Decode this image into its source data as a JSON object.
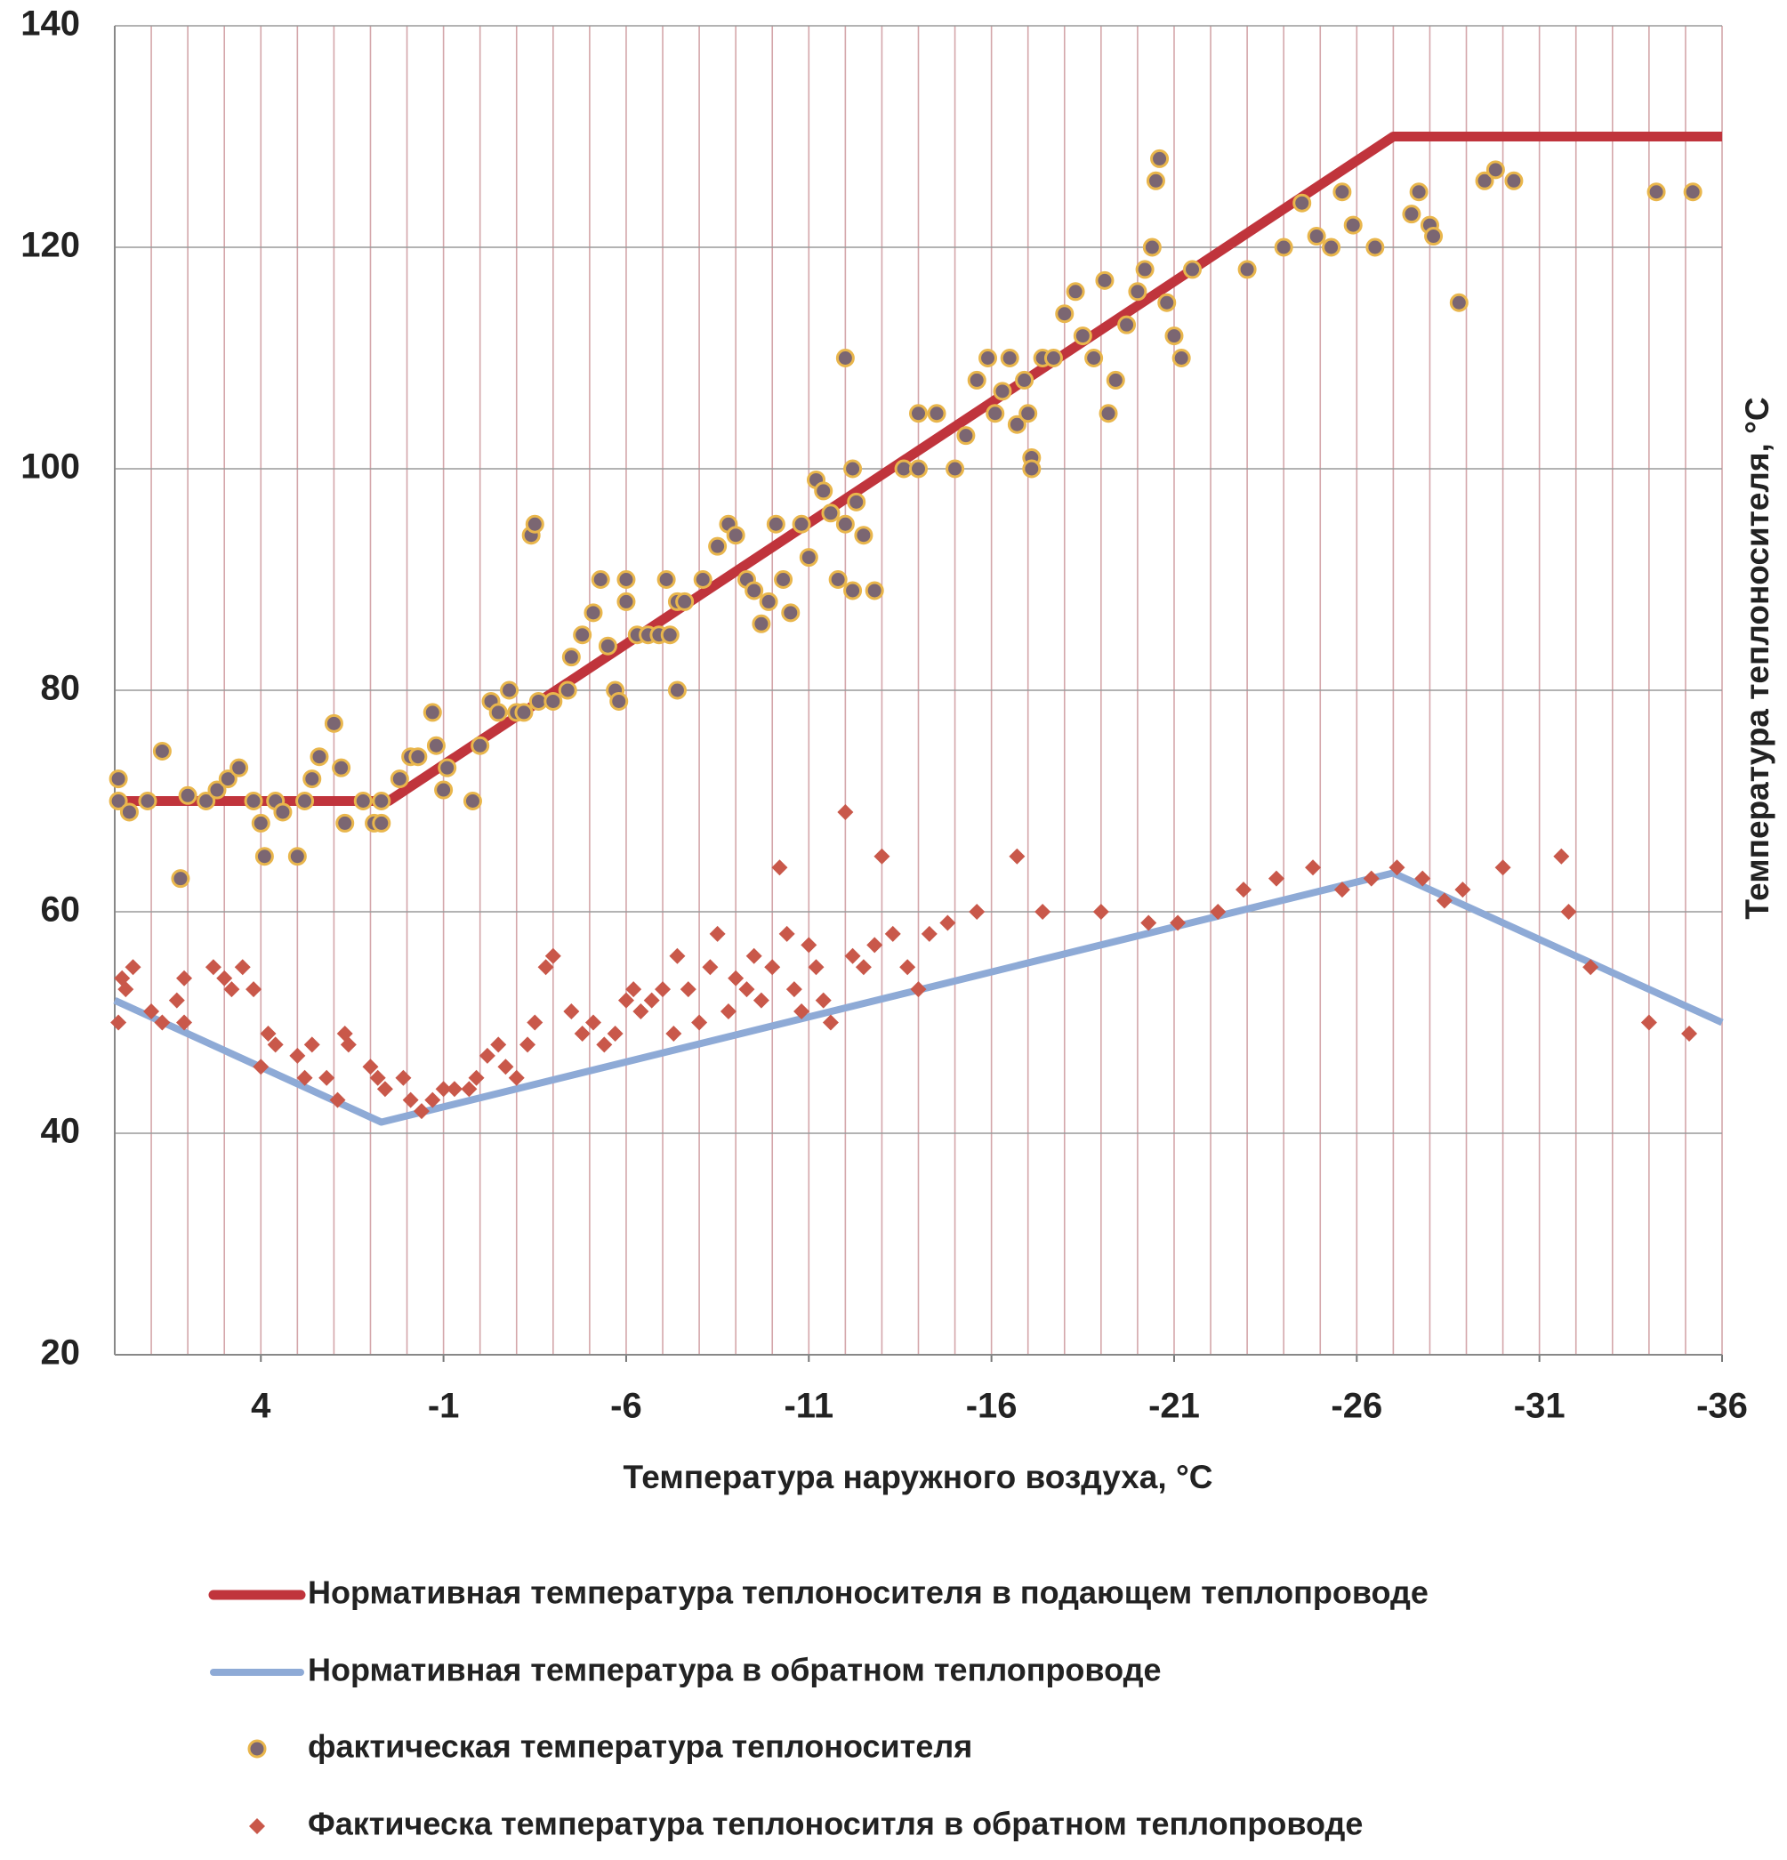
{
  "chart_data": {
    "type": "scatter",
    "x_label": "Температура наружного воздуха, °C",
    "y_label": "Температура теплоносителя, °C",
    "xlim": [
      8,
      -36
    ],
    "ylim": [
      20,
      140
    ],
    "xticks": [
      4,
      -1,
      -6,
      -11,
      -16,
      -21,
      -26,
      -31,
      -36
    ],
    "yticks": [
      20,
      40,
      60,
      80,
      100,
      120,
      140
    ],
    "x_grid_step": 1,
    "grid": true,
    "series": [
      {
        "name": "Нормативная температура теплоносителя в подающем теплопроводе",
        "style": "line",
        "color": "#c0343c",
        "x": [
          8,
          0.5,
          -27,
          -36
        ],
        "values": [
          70,
          70,
          130,
          130
        ]
      },
      {
        "name": "Нормативная температура в обратном теплопроводе",
        "style": "line",
        "color": "#8eaad6",
        "x": [
          8,
          0.7,
          -27,
          -36
        ],
        "values": [
          52,
          41,
          63.5,
          50
        ]
      },
      {
        "name": "фактическая температура теплоносителя",
        "style": "circle",
        "color": "#7b6672",
        "x": [
          7.9,
          7.9,
          7.6,
          7.1,
          6.7,
          6.2,
          6.0,
          5.5,
          5.2,
          4.9,
          4.6,
          4.2,
          4.0,
          3.9,
          3.6,
          3.4,
          3.0,
          2.8,
          2.6,
          2.4,
          2.0,
          1.8,
          1.7,
          1.2,
          0.9,
          0.7,
          0.7,
          0.2,
          -0.1,
          -0.3,
          -0.7,
          -0.8,
          -1.0,
          -1.1,
          -1.8,
          -2.0,
          -2.3,
          -2.5,
          -2.8,
          -3.0,
          -3.2,
          -3.4,
          -3.5,
          -3.6,
          -4.0,
          -4.4,
          -4.5,
          -4.8,
          -5.1,
          -5.3,
          -5.5,
          -5.7,
          -5.8,
          -6.0,
          -6.0,
          -6.3,
          -6.6,
          -6.9,
          -7.1,
          -7.2,
          -7.4,
          -7.4,
          -7.6,
          -8.1,
          -8.5,
          -8.8,
          -9.0,
          -9.3,
          -9.5,
          -9.7,
          -9.9,
          -10.1,
          -10.3,
          -10.5,
          -10.8,
          -11.0,
          -11.2,
          -11.4,
          -11.6,
          -11.8,
          -12.0,
          -12.2,
          -12.3,
          -12.0,
          -12.5,
          -12.2,
          -12.8,
          -13.6,
          -14.0,
          -14.0,
          -14.5,
          -15.0,
          -15.3,
          -15.6,
          -15.9,
          -16.1,
          -16.3,
          -16.5,
          -16.7,
          -16.9,
          -17.0,
          -17.1,
          -17.1,
          -17.4,
          -17.7,
          -18.0,
          -18.3,
          -18.5,
          -18.8,
          -19.1,
          -19.2,
          -19.4,
          -19.7,
          -20.0,
          -20.2,
          -20.4,
          -20.5,
          -20.6,
          -20.8,
          -21.0,
          -21.2,
          -21.5,
          -23.0,
          -24.0,
          -24.5,
          -24.9,
          -25.3,
          -25.6,
          -25.9,
          -26.5,
          -27.5,
          -27.7,
          -28.0,
          -28.1,
          -28.8,
          -29.5,
          -29.8,
          -30.3,
          -34.2,
          -35.2
        ],
        "values": [
          70,
          72,
          69,
          70,
          74.5,
          63,
          70.5,
          70,
          71,
          72,
          73,
          70,
          68,
          65,
          70,
          69,
          65,
          70,
          72,
          74,
          77,
          73,
          68,
          70,
          68,
          68,
          70,
          72,
          74,
          74,
          78,
          75,
          71,
          73,
          70,
          75,
          79,
          78,
          80,
          78,
          78,
          94,
          95,
          79,
          79,
          80,
          83,
          85,
          87,
          90,
          84,
          80,
          79,
          88,
          90,
          85,
          85,
          85,
          90,
          85,
          88,
          80,
          88,
          90,
          93,
          95,
          94,
          90,
          89,
          86,
          88,
          95,
          90,
          87,
          95,
          92,
          99,
          98,
          96,
          90,
          95,
          100,
          97,
          110,
          94,
          89,
          89,
          100,
          100,
          105,
          105,
          100,
          103,
          108,
          110,
          105,
          107,
          110,
          104,
          108,
          105,
          101,
          100,
          110,
          110,
          114,
          116,
          112,
          110,
          117,
          105,
          108,
          113,
          116,
          118,
          120,
          126,
          128,
          115,
          112,
          110,
          118,
          118,
          120,
          124,
          121,
          120,
          125,
          122,
          120,
          123,
          125,
          122,
          121,
          115,
          126,
          127,
          126,
          125,
          125
        ]
      },
      {
        "name": "Фактическа температура теплоноситля в обратном теплопроводе",
        "style": "diamond",
        "color": "#c9584a",
        "x": [
          7.9,
          7.8,
          7.7,
          7.5,
          7.0,
          6.7,
          6.3,
          6.1,
          6.1,
          5.3,
          5.0,
          4.8,
          4.5,
          4.2,
          4.0,
          3.8,
          3.6,
          3.0,
          2.8,
          2.6,
          2.2,
          1.9,
          1.7,
          1.6,
          1.0,
          0.8,
          0.6,
          0.1,
          -0.1,
          -0.4,
          -0.7,
          -1.0,
          -1.3,
          -1.7,
          -1.9,
          -2.2,
          -2.5,
          -2.7,
          -3.0,
          -3.3,
          -3.5,
          -3.8,
          -4.0,
          -4.5,
          -4.8,
          -5.1,
          -5.4,
          -5.7,
          -6.0,
          -6.2,
          -6.4,
          -6.7,
          -7.0,
          -7.3,
          -7.4,
          -7.7,
          -8.0,
          -8.3,
          -8.5,
          -8.8,
          -9.0,
          -9.3,
          -9.5,
          -9.7,
          -10.0,
          -10.2,
          -10.4,
          -10.6,
          -10.8,
          -11.0,
          -11.2,
          -11.4,
          -11.6,
          -12.0,
          -12.2,
          -12.5,
          -12.8,
          -13.0,
          -13.3,
          -13.7,
          -14.0,
          -14.3,
          -14.8,
          -15.6,
          -16.7,
          -17.4,
          -19.0,
          -20.3,
          -21.1,
          -22.2,
          -22.9,
          -23.8,
          -24.8,
          -25.6,
          -26.4,
          -27.1,
          -27.8,
          -28.4,
          -28.9,
          -30.0,
          -31.6,
          -31.8,
          -32.4,
          -34.0,
          -35.1
        ],
        "values": [
          50,
          54,
          53,
          55,
          51,
          50,
          52,
          54,
          50,
          55,
          54,
          53,
          55,
          53,
          46,
          49,
          48,
          47,
          45,
          48,
          45,
          43,
          49,
          48,
          46,
          45,
          44,
          45,
          43,
          42,
          43,
          44,
          44,
          44,
          45,
          47,
          48,
          46,
          45,
          48,
          50,
          55,
          56,
          51,
          49,
          50,
          48,
          49,
          52,
          53,
          51,
          52,
          53,
          49,
          56,
          53,
          50,
          55,
          58,
          51,
          54,
          53,
          56,
          52,
          55,
          64,
          58,
          53,
          51,
          57,
          55,
          52,
          50,
          69,
          56,
          55,
          57,
          65,
          58,
          55,
          53,
          58,
          59,
          60,
          65,
          60,
          60,
          59,
          59,
          60,
          62,
          63,
          64,
          62,
          63,
          64,
          63,
          61,
          62,
          64,
          65,
          60,
          55,
          50,
          49
        ]
      }
    ]
  }
}
